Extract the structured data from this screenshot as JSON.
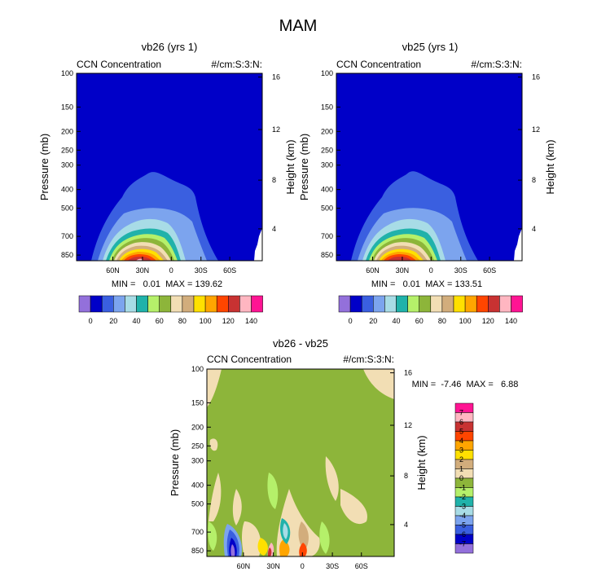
{
  "page_title": "MAM",
  "colors": {
    "upper_palette": [
      "#9370DB",
      "#0000C8",
      "#3A5FE0",
      "#7CA4EE",
      "#A8DCE6",
      "#20B2AA",
      "#B5F06A",
      "#8DB53A",
      "#F2DEB4",
      "#D2AD7C",
      "#FFE000",
      "#FFA500",
      "#FF4500",
      "#C83232",
      "#FFB6C1",
      "#FF1493"
    ],
    "diff_palette": [
      "#FF1493",
      "#FFB6C1",
      "#C83232",
      "#FF4500",
      "#FFA500",
      "#FFE000",
      "#D2AD7C",
      "#F2DEB4",
      "#8DB53A",
      "#B5F06A",
      "#20B2AA",
      "#A8DCE6",
      "#7CA4EE",
      "#3A5FE0",
      "#0000C8",
      "#9370DB"
    ]
  },
  "chart_data": [
    {
      "type": "heatmap",
      "id": "vb26",
      "title": "vb26 (yrs 1)",
      "left_label": "CCN Concentration",
      "right_label": "#/cm:S:3:N:",
      "ylabel": "Pressure (mb)",
      "ylabel_right": "Height (km)",
      "yticks": [
        "100",
        "150",
        "200",
        "250",
        "300",
        "400",
        "500",
        "700",
        "850"
      ],
      "yticks_right": [
        "16",
        "12",
        "8",
        "4"
      ],
      "xticks": [
        "60N",
        "30N",
        "0",
        "30S",
        "60S"
      ],
      "stats": "MIN =   0.01  MAX = 139.62",
      "min": 0.01,
      "max": 139.62,
      "peak_lat": "30N",
      "peak_pressure_mb": 850,
      "plume_top_mb": 300,
      "colorbar_labels": [
        "0",
        "20",
        "40",
        "60",
        "80",
        "100",
        "120",
        "140"
      ]
    },
    {
      "type": "heatmap",
      "id": "vb25",
      "title": "vb25 (yrs 1)",
      "left_label": "CCN Concentration",
      "right_label": "#/cm:S:3:N:",
      "ylabel": "Pressure (mb)",
      "ylabel_right": "Height (km)",
      "yticks": [
        "100",
        "150",
        "200",
        "250",
        "300",
        "400",
        "500",
        "700",
        "850"
      ],
      "yticks_right": [
        "16",
        "12",
        "8",
        "4"
      ],
      "xticks": [
        "60N",
        "30N",
        "0",
        "30S",
        "60S"
      ],
      "stats": "MIN =   0.01  MAX = 133.51",
      "min": 0.01,
      "max": 133.51,
      "peak_lat": "30N",
      "peak_pressure_mb": 850,
      "plume_top_mb": 300,
      "colorbar_labels": [
        "0",
        "20",
        "40",
        "60",
        "80",
        "100",
        "120",
        "140"
      ]
    },
    {
      "type": "heatmap",
      "id": "diff",
      "title": "vb26 - vb25",
      "left_label": "CCN Concentration",
      "right_label": "#/cm:S:3:N:",
      "ylabel": "Pressure (mb)",
      "ylabel_right": "Height (km)",
      "yticks": [
        "100",
        "150",
        "200",
        "250",
        "300",
        "400",
        "500",
        "700",
        "850"
      ],
      "yticks_right": [
        "16",
        "12",
        "8",
        "4"
      ],
      "xticks": [
        "60N",
        "30N",
        "0",
        "30S",
        "60S"
      ],
      "stats": "MIN =  -7.46  MAX =   6.88",
      "min": -7.46,
      "max": 6.88,
      "colorbar_labels": [
        "7",
        "6",
        "5",
        "4",
        "3",
        "2",
        "1",
        "0",
        "-1",
        "-2",
        "-3",
        "-4",
        "-5",
        "-6",
        "-7"
      ]
    }
  ]
}
